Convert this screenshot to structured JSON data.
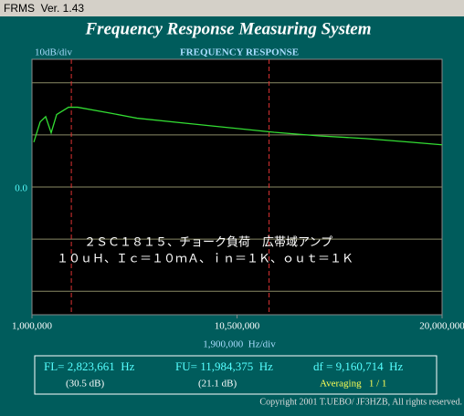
{
  "window_title": "FRMS  Ver. 1.43",
  "app_title": "Frequency Response Measuring System",
  "chart_data": {
    "type": "line",
    "title": "FREQUENCY RESPONSE",
    "y_scale_label": "10dB/div",
    "x_scale_label": "1,900,000  Hz/div",
    "annotations": [
      "２ＳＣ１８１５、チョーク負荷　広帯域アンプ",
      "１０ｕＨ、Ｉｃ＝１０ｍＡ、ｉｎ＝１Ｋ、ｏｕｔ＝１Ｋ"
    ],
    "x": [
      1085000,
      1381000,
      1635000,
      1889000,
      2143000,
      2693000,
      3116000,
      4597000,
      5866000,
      7982000,
      10098000,
      12214000,
      14330000,
      16445000,
      18561000,
      20000000
    ],
    "series": [
      {
        "color": "#33dd33",
        "values": [
          8.6,
          12.5,
          13.5,
          10.4,
          13.9,
          15.3,
          15.3,
          14.2,
          13.2,
          12.3,
          11.4,
          10.5,
          9.8,
          9.3,
          8.6,
          8.1
        ]
      }
    ],
    "xlim": [
      1000000,
      20000000
    ],
    "xticks": [
      {
        "value": 1000000,
        "label": "1,000,000"
      },
      {
        "value": 10500000,
        "label": "10,500,000"
      },
      {
        "value": 20000000,
        "label": "20,000,000"
      }
    ],
    "ylim": [
      -24.5,
      24.5
    ],
    "yticks": [
      -20,
      -10,
      {
        "value": 0,
        "label": "0.0"
      },
      10,
      20
    ],
    "grid": true,
    "markers": [
      2823661,
      11984375
    ],
    "marker_color": "#dd3333"
  },
  "readout": {
    "fl": "FL= 2,823,661  Hz",
    "fl_db": "(30.5 dB)",
    "fu": "FU= 11,984,375  Hz",
    "fu_db": "(21.1 dB)",
    "df": "df = 9,160,714  Hz",
    "averaging": "Averaging   1 / 1"
  },
  "copyright": "Copyright 2001 T.UEBO/ JF3HZB, All rights reserved."
}
